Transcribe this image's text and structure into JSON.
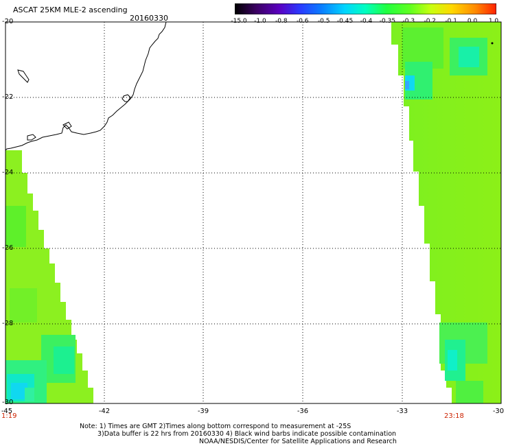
{
  "header": {
    "title": "ASCAT 25KM MLE-2 ascending",
    "date": "20160330"
  },
  "colorbar": {
    "labels": [
      "-15.0",
      "-1.0",
      "-0.8",
      "-0.6",
      "-0.5",
      "-0.45",
      "-0.4",
      "-0.35",
      "-0.3",
      "-0.2",
      "-0.1",
      "0.0",
      "1.0"
    ],
    "colors": [
      "#000000",
      "#2a0040",
      "#5a0090",
      "#3a2aff",
      "#0a6cff",
      "#00b4ff",
      "#00f0ff",
      "#00ff9a",
      "#30ff30",
      "#a8ff10",
      "#ffe000",
      "#ff9a00",
      "#ff3a00"
    ]
  },
  "axes": {
    "lat_labels": [
      "-20",
      "-22",
      "-24",
      "-26",
      "-28",
      "-30"
    ],
    "lon_labels": [
      "-45",
      "-42",
      "-39",
      "-36",
      "-33",
      "-30"
    ]
  },
  "times": {
    "left": "1:19",
    "right": "23:18"
  },
  "notes": {
    "line1": "Note: 1) Times are GMT 2)Times along bottom correspond to measurement at -25S",
    "line2": "3)Data buffer is 22 hrs from 20160330 4) Black wind barbs indicate possible contamination",
    "line3": "NOAA/NESDIS/Center for Satellite Applications and Research"
  }
}
